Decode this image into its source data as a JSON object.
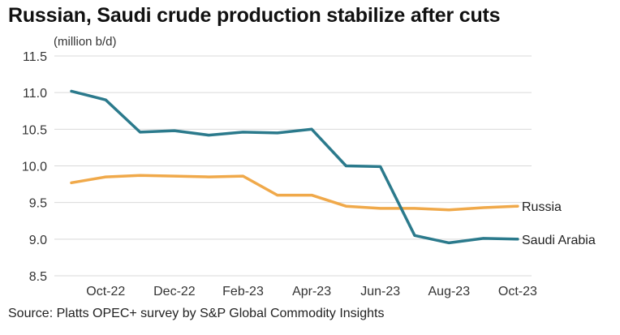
{
  "chart_data": {
    "type": "line",
    "title": "Russian, Saudi crude production stabilize after cuts",
    "ylabel": "(million b/d)",
    "xlabel": "",
    "source": "Source: Platts OPEC+ survey by S&P Global Commodity Insights",
    "ylim": [
      8.5,
      11.5
    ],
    "yticks": [
      8.5,
      9.0,
      9.5,
      10.0,
      10.5,
      11.0,
      11.5
    ],
    "ytick_labels": [
      "8.5",
      "9.0",
      "9.5",
      "10.0",
      "10.5",
      "11.0",
      "11.5"
    ],
    "x": [
      "Sep-22",
      "Oct-22",
      "Nov-22",
      "Dec-22",
      "Jan-23",
      "Feb-23",
      "Mar-23",
      "Apr-23",
      "May-23",
      "Jun-23",
      "Jul-23",
      "Aug-23",
      "Sep-23",
      "Oct-23"
    ],
    "xtick_labels": [
      "Oct-22",
      "Dec-22",
      "Feb-23",
      "Apr-23",
      "Jun-23",
      "Aug-23",
      "Oct-23"
    ],
    "grid": true,
    "series": [
      {
        "name": "Russia",
        "color": "#f0a94a",
        "values": [
          9.77,
          9.85,
          9.87,
          9.86,
          9.85,
          9.86,
          9.6,
          9.6,
          9.45,
          9.42,
          9.42,
          9.4,
          9.43,
          9.45
        ]
      },
      {
        "name": "Saudi Arabia",
        "color": "#2b7a8c",
        "values": [
          11.02,
          10.9,
          10.46,
          10.48,
          10.42,
          10.46,
          10.45,
          10.5,
          10.0,
          9.99,
          9.05,
          8.95,
          9.01,
          9.0
        ]
      }
    ]
  }
}
